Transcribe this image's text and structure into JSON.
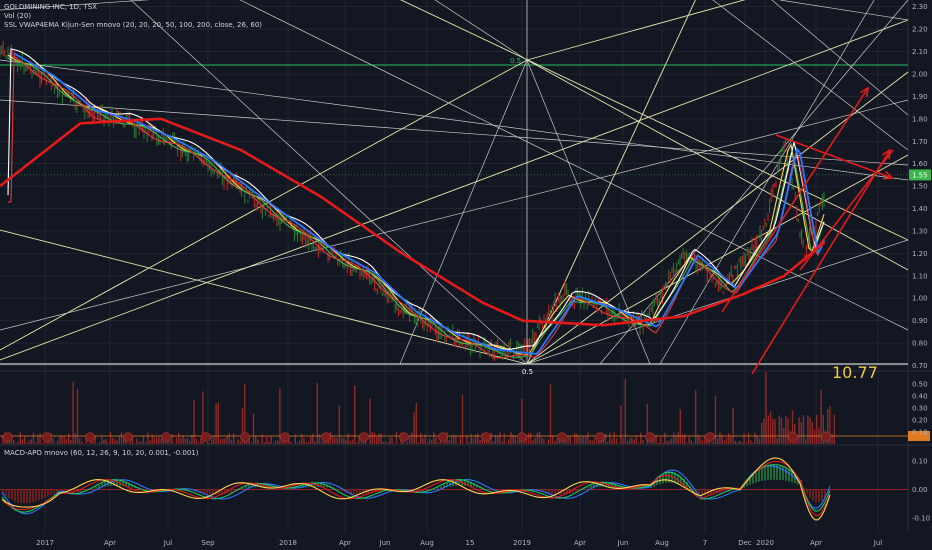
{
  "header": {
    "title": "GOLDMINING INC, 1D, TSX",
    "vol_label": "Vol (20)",
    "indicator_label": "SSL VWAP4EMA Kijun-Sen mnovo (20, 20, 20, 50, 100, 200, close, 26, 60)",
    "macd_label": "MACD-APO mnovo (60, 12, 26, 9, 10, 20, 0.001, -0.001)"
  },
  "annotations": {
    "big_value": "10.77",
    "fib_left": "0.5",
    "fib_top": "0.5"
  },
  "colors": {
    "background": "#131722",
    "grid": "#2a2e39",
    "green_level": "#21c25e",
    "red_line": "#e31b1b",
    "blue_line": "#2879ff",
    "price_label_bg": "#39b54a",
    "volume_bar": "#8c2a2a",
    "fan_line": "#e8e6b0",
    "white_line": "#c8c8c8",
    "annotation_text": "#f0c94a"
  },
  "chart_data": [
    {
      "type": "line",
      "title": "GOLDMINING INC, 1D, TSX",
      "x_ticks": [
        "2017",
        "Apr",
        "Jul",
        "Sep",
        "2018",
        "Apr",
        "Jun",
        "Aug",
        "15",
        "2019",
        "Apr",
        "Jun",
        "Aug",
        "7",
        "Dec",
        "2020",
        "Apr",
        "Jul"
      ],
      "y_ticks": [
        "2.30",
        "2.20",
        "2.10",
        "2.00",
        "1.90",
        "1.80",
        "1.70",
        "1.60",
        "1.50",
        "1.40",
        "1.30",
        "1.20",
        "1.10",
        "1.00",
        "0.90",
        "0.80",
        "0.70"
      ],
      "ylim": [
        0.7,
        2.3
      ],
      "last_price": "1.55",
      "horizontal_level": 2.04,
      "series": [
        {
          "role": "price",
          "x": [
            "2016-11",
            "2017-01",
            "2017-03",
            "2017-05",
            "2017-07",
            "2017-09",
            "2017-11",
            "2018-01",
            "2018-03",
            "2018-05",
            "2018-07",
            "2018-09",
            "2018-11",
            "2019-01",
            "2019-03",
            "2019-05",
            "2019-07",
            "2019-09",
            "2019-11",
            "2020-01",
            "2020-02",
            "2020-03",
            "2020-04"
          ],
          "values": [
            2.1,
            2.0,
            1.85,
            1.8,
            1.72,
            1.62,
            1.48,
            1.35,
            1.22,
            1.12,
            0.95,
            0.85,
            0.78,
            0.76,
            1.02,
            0.96,
            0.88,
            1.2,
            1.05,
            1.3,
            1.7,
            1.2,
            1.45
          ]
        },
        {
          "role": "moving-average-200",
          "x": [
            "2016-11",
            "2017-03",
            "2017-07",
            "2017-11",
            "2018-03",
            "2018-07",
            "2018-11",
            "2019-01",
            "2019-05",
            "2019-09",
            "2019-12",
            "2020-02",
            "2020-04"
          ],
          "values": [
            1.5,
            1.78,
            1.8,
            1.66,
            1.45,
            1.2,
            0.98,
            0.9,
            0.88,
            0.92,
            1.02,
            1.1,
            1.25
          ]
        }
      ]
    },
    {
      "type": "bar",
      "title": "Vol (20)",
      "y_ticks": [
        "0.50",
        "0.40",
        "0.30",
        "0.20",
        "0.10"
      ]
    },
    {
      "type": "line",
      "title": "MACD-APO mnovo (60, 12, 26, 9, 10, 20, 0.001, -0.001)",
      "y_ticks": [
        "0.10",
        "0.00",
        "-0.10"
      ],
      "ylim": [
        -0.15,
        0.15
      ]
    }
  ]
}
